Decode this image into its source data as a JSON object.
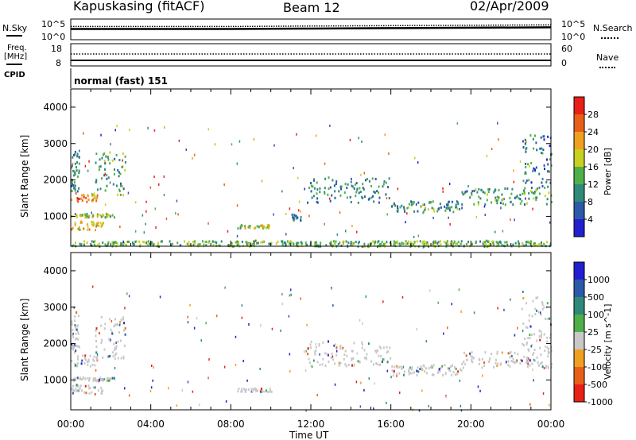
{
  "header": {
    "station": "Kapuskasing (fitACF)",
    "beam": "Beam 12",
    "date": "02/Apr/2009"
  },
  "left_labels": {
    "nsky": "N.Sky",
    "freq": "Freq.",
    "freq_unit": "[MHz]",
    "cpid": "CPID"
  },
  "right_labels": {
    "nsearch": "N.Search",
    "nave": "Nave"
  },
  "noise_axis": {
    "left_top": "10^5",
    "left_bottom": "10^0",
    "right_top": "10^5",
    "right_bottom": "10^0"
  },
  "freq_axis": {
    "left_top": "18",
    "left_bottom": "8",
    "right_top": "60",
    "right_bottom": "0"
  },
  "cpid_text": "normal (fast) 151",
  "time_axis": {
    "label": "Time UT",
    "ticks": [
      "00:00",
      "04:00",
      "08:00",
      "12:00",
      "16:00",
      "20:00",
      "00:00"
    ]
  },
  "range_axis": {
    "label": "Slant Range [km]",
    "ticks": [
      "1000",
      "2000",
      "3000",
      "4000"
    ]
  },
  "power_colorbar": {
    "title": "Power [dB]",
    "ticks": [
      "4",
      "8",
      "12",
      "16",
      "20",
      "24",
      "28"
    ],
    "colors": [
      "#2020d0",
      "#2a5aa8",
      "#2f8a7a",
      "#4fb04a",
      "#c8d020",
      "#f0a020",
      "#e86018",
      "#e82018"
    ]
  },
  "velocity_colorbar": {
    "title": "Velocity [m s^-1]",
    "ticks": [
      "1000",
      "500",
      "100",
      "25",
      "-25",
      "-100",
      "-500",
      "-1000"
    ],
    "colors": [
      "#2020d0",
      "#2a5aa8",
      "#2f8a7a",
      "#4fb04a",
      "#c8c8c8",
      "#f0a020",
      "#e86018",
      "#e82018"
    ]
  },
  "chart_data": [
    {
      "type": "line",
      "panel": "noise",
      "title": "",
      "series": [
        {
          "name": "N.Sky",
          "x_hours": [
            0,
            4,
            8,
            12,
            16,
            20,
            24
          ],
          "values_log10": [
            2.6,
            2.6,
            2.6,
            2.7,
            2.8,
            2.9,
            3.0
          ]
        },
        {
          "name": "N.Search",
          "x_hours": [
            0,
            4,
            8,
            12,
            16,
            20,
            24
          ],
          "values_log10": [
            3.2,
            3.2,
            3.2,
            3.3,
            3.4,
            3.5,
            3.6
          ]
        }
      ],
      "xlim": [
        0,
        24
      ],
      "ylim_log10": [
        0,
        5
      ]
    },
    {
      "type": "line",
      "panel": "frequency",
      "title": "",
      "series": [
        {
          "name": "Freq.",
          "x_hours": [
            0,
            24
          ],
          "values": [
            10,
            10
          ]
        },
        {
          "name": "Nave",
          "x_hours": [
            0,
            24
          ],
          "values": [
            24,
            24
          ]
        }
      ],
      "xlim": [
        0,
        24
      ],
      "ylim_left": [
        8,
        18
      ],
      "ylim_right": [
        0,
        60
      ]
    },
    {
      "type": "heatmap",
      "panel": "power",
      "xlabel": "Time UT",
      "ylabel": "Slant Range [km]",
      "xlim": [
        0,
        24
      ],
      "ylim": [
        180,
        4500
      ],
      "value_units": "dB",
      "scatter_regions": [
        {
          "t0": 0.0,
          "t1": 1.3,
          "r0": 1400,
          "r1": 1700,
          "level": 22
        },
        {
          "t0": 0.0,
          "t1": 2.2,
          "r0": 1000,
          "r1": 1100,
          "level": 14
        },
        {
          "t0": 0.0,
          "t1": 1.6,
          "r0": 650,
          "r1": 900,
          "level": 18
        },
        {
          "t0": 0.0,
          "t1": 0.4,
          "r0": 1700,
          "r1": 2900,
          "level": 8
        },
        {
          "t0": 1.2,
          "t1": 2.7,
          "r0": 1600,
          "r1": 2800,
          "level": 10
        },
        {
          "t0": 8.3,
          "t1": 10.0,
          "r0": 700,
          "r1": 800,
          "level": 14
        },
        {
          "t0": 11.0,
          "t1": 11.5,
          "r0": 900,
          "r1": 1100,
          "level": 8
        },
        {
          "t0": 11.8,
          "t1": 16.0,
          "r0": 1400,
          "r1": 2100,
          "level": 8
        },
        {
          "t0": 16.0,
          "t1": 19.5,
          "r0": 1150,
          "r1": 1450,
          "level": 9
        },
        {
          "t0": 19.5,
          "t1": 24.0,
          "r0": 1350,
          "r1": 1800,
          "level": 10
        },
        {
          "t0": 22.5,
          "t1": 24.0,
          "r0": 1800,
          "r1": 3300,
          "level": 7
        },
        {
          "t0": 0.0,
          "t1": 24.0,
          "r0": 200,
          "r1": 350,
          "level": 12
        }
      ]
    },
    {
      "type": "heatmap",
      "panel": "velocity",
      "xlabel": "Time UT",
      "ylabel": "Slant Range [km]",
      "xlim": [
        0,
        24
      ],
      "ylim": [
        180,
        4500
      ],
      "value_units": "m s^-1",
      "scatter_regions": [
        {
          "t0": 0.0,
          "t1": 1.3,
          "r0": 1400,
          "r1": 1700,
          "level": 0
        },
        {
          "t0": 0.0,
          "t1": 2.2,
          "r0": 1000,
          "r1": 1100,
          "level": 0
        },
        {
          "t0": 0.0,
          "t1": 1.6,
          "r0": 650,
          "r1": 900,
          "level": 0
        },
        {
          "t0": 0.0,
          "t1": 0.4,
          "r0": 1700,
          "r1": 2900,
          "level": 0
        },
        {
          "t0": 1.2,
          "t1": 2.7,
          "r0": 1600,
          "r1": 2800,
          "level": 0
        },
        {
          "t0": 8.3,
          "t1": 10.0,
          "r0": 700,
          "r1": 800,
          "level": 0
        },
        {
          "t0": 11.8,
          "t1": 16.0,
          "r0": 1400,
          "r1": 2100,
          "level": 0
        },
        {
          "t0": 16.0,
          "t1": 19.5,
          "r0": 1150,
          "r1": 1450,
          "level": 0
        },
        {
          "t0": 19.5,
          "t1": 24.0,
          "r0": 1350,
          "r1": 1800,
          "level": 0
        },
        {
          "t0": 22.5,
          "t1": 24.0,
          "r0": 1800,
          "r1": 3300,
          "level": 0
        }
      ]
    }
  ]
}
